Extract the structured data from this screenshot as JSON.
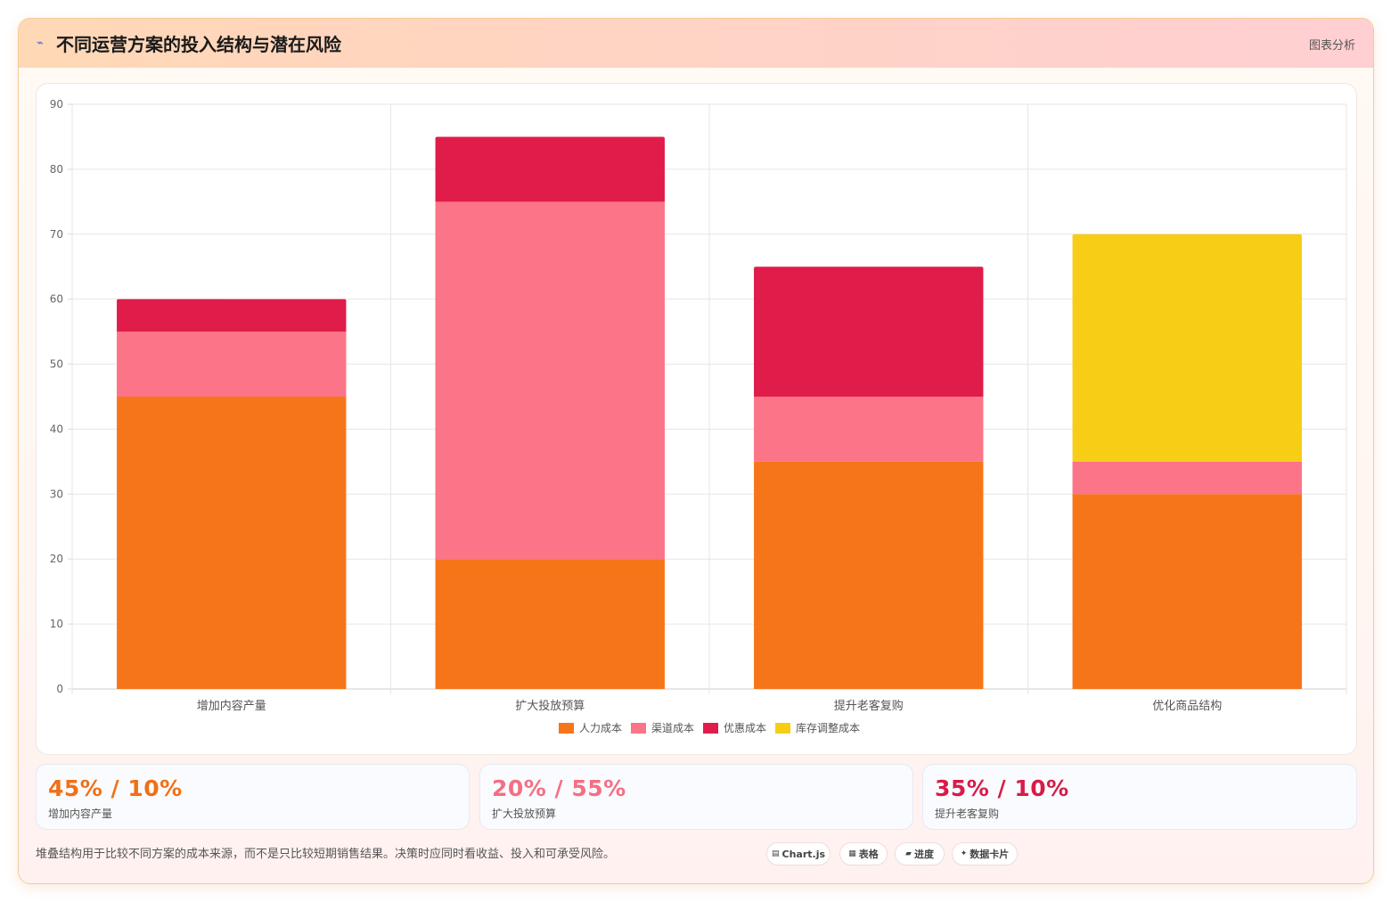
{
  "header": {
    "title": "不同运营方案的投入结构与潜在风险",
    "icon": "chart-icon",
    "link_label": "图表分析"
  },
  "chart_data": {
    "type": "bar",
    "stacked": true,
    "categories": [
      "增加内容产量",
      "扩大投放预算",
      "提升老客复购",
      "优化商品结构"
    ],
    "series": [
      {
        "name": "人力成本",
        "color": "#f77519",
        "values": [
          45,
          20,
          35,
          30
        ]
      },
      {
        "name": "渠道成本",
        "color": "#fc7487",
        "values": [
          10,
          55,
          10,
          5
        ]
      },
      {
        "name": "优惠成本",
        "color": "#e01c4a",
        "values": [
          5,
          10,
          20,
          0
        ]
      },
      {
        "name": "库存调整成本",
        "color": "#f7cd16",
        "values": [
          0,
          0,
          0,
          35
        ]
      }
    ],
    "ylim": [
      0,
      90
    ],
    "yticks": [
      "0",
      "10",
      "20",
      "30",
      "40",
      "50",
      "60",
      "70",
      "80",
      "90"
    ],
    "grid": true,
    "legend_position": "bottom"
  },
  "stats": [
    {
      "value": "45% / 10%",
      "label": "增加内容产量",
      "color": "#f07016"
    },
    {
      "value": "20% / 55%",
      "label": "扩大投放预算",
      "color": "#f56f83"
    },
    {
      "value": "35% / 10%",
      "label": "提升老客复购",
      "color": "#d81b48"
    }
  ],
  "footer": {
    "note": "堆叠结构用于比较不同方案的成本来源，而不是只比较短期销售结果。决策时应同时看收益、投入和可承受风险。",
    "pills": [
      {
        "icon": "▤",
        "label": "Chart.js"
      },
      {
        "icon": "▦",
        "label": "表格"
      },
      {
        "icon": "▰",
        "label": "进度"
      },
      {
        "icon": "✦",
        "label": "数据卡片"
      }
    ]
  }
}
